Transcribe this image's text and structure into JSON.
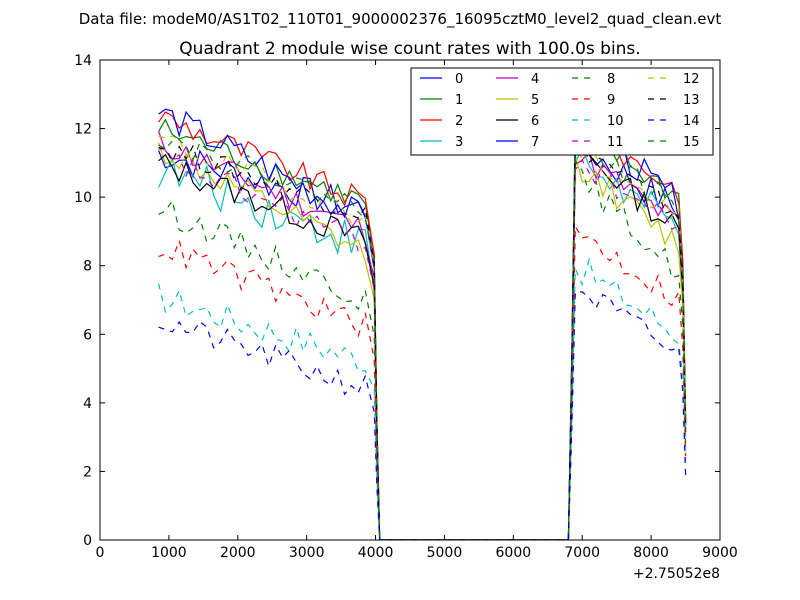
{
  "chart_data": {
    "type": "line",
    "suptitle": "Data file: modeM0/AS1T02_110T01_9000002376_16095cztM0_level2_quad_clean.evt",
    "title": "Quadrant 2 module wise count rates with 100.0s bins.",
    "xlabel": "",
    "ylabel": "",
    "x_offset_label": "+2.75052e8",
    "xlim": [
      0,
      9000
    ],
    "ylim": [
      0,
      14
    ],
    "xticks": [
      0,
      1000,
      2000,
      3000,
      4000,
      5000,
      6000,
      7000,
      8000,
      9000
    ],
    "yticks": [
      0,
      2,
      4,
      6,
      8,
      10,
      12,
      14
    ],
    "xtick_labels": [
      "0",
      "1000",
      "2000",
      "3000",
      "4000",
      "5000",
      "6000",
      "7000",
      "8000",
      "9000"
    ],
    "ytick_labels": [
      "0",
      "2",
      "4",
      "6",
      "8",
      "10",
      "12",
      "14"
    ],
    "grid": false,
    "legend_location": "top-right",
    "legend_columns": 4,
    "bin_width_s": 100,
    "x_segments": [
      {
        "start": 850,
        "end": 3900,
        "step": 100
      },
      {
        "gap_drop_end": 4060,
        "gap_zero_end": 6800,
        "rise_start": 6800
      },
      {
        "start": 6900,
        "end": 8400,
        "step": 100
      },
      {
        "drop_end": 8500
      }
    ],
    "series": [
      {
        "name": "0",
        "color": "#0000ff",
        "style": "solid",
        "start": 11.3,
        "seg1_end": 9.6,
        "seg2_start": 11.6,
        "seg2_end": 9.6,
        "noise": 0.5
      },
      {
        "name": "1",
        "color": "#008000",
        "style": "solid",
        "start": 12.0,
        "seg1_end": 9.8,
        "seg2_start": 12.0,
        "seg2_end": 10.0,
        "noise": 0.4
      },
      {
        "name": "2",
        "color": "#ff0000",
        "style": "solid",
        "start": 12.4,
        "seg1_end": 9.8,
        "seg2_start": 12.2,
        "seg2_end": 10.2,
        "noise": 0.4
      },
      {
        "name": "3",
        "color": "#00bfbf",
        "style": "solid",
        "start": 10.8,
        "seg1_end": 8.6,
        "seg2_start": 11.2,
        "seg2_end": 9.0,
        "noise": 0.6
      },
      {
        "name": "4",
        "color": "#bf00bf",
        "style": "solid",
        "start": 11.6,
        "seg1_end": 9.0,
        "seg2_start": 11.3,
        "seg2_end": 9.2,
        "noise": 0.4
      },
      {
        "name": "5",
        "color": "#bfbf00",
        "style": "solid",
        "start": 11.4,
        "seg1_end": 8.3,
        "seg2_start": 11.0,
        "seg2_end": 8.6,
        "noise": 0.4
      },
      {
        "name": "6",
        "color": "#000000",
        "style": "solid",
        "start": 11.0,
        "seg1_end": 8.7,
        "seg2_start": 11.5,
        "seg2_end": 9.0,
        "noise": 0.4
      },
      {
        "name": "7",
        "color": "#0000ff",
        "style": "solid",
        "start": 12.5,
        "seg1_end": 9.3,
        "seg2_start": 12.4,
        "seg2_end": 9.8,
        "noise": 0.45
      },
      {
        "name": "8",
        "color": "#008000",
        "style": "dashed",
        "start": 9.7,
        "seg1_end": 7.0,
        "seg2_start": 10.7,
        "seg2_end": 7.8,
        "noise": 0.4
      },
      {
        "name": "9",
        "color": "#ff0000",
        "style": "dashed",
        "start": 8.6,
        "seg1_end": 6.2,
        "seg2_start": 9.0,
        "seg2_end": 7.0,
        "noise": 0.4
      },
      {
        "name": "10",
        "color": "#00bfbf",
        "style": "dashed",
        "start": 7.1,
        "seg1_end": 5.2,
        "seg2_start": 8.0,
        "seg2_end": 6.0,
        "noise": 0.45
      },
      {
        "name": "11",
        "color": "#bf00bf",
        "style": "dashed",
        "start": 11.2,
        "seg1_end": 8.6,
        "seg2_start": 11.1,
        "seg2_end": 9.1,
        "noise": 0.4
      },
      {
        "name": "12",
        "color": "#bfbf00",
        "style": "dashed",
        "start": 11.7,
        "seg1_end": 9.4,
        "seg2_start": 11.4,
        "seg2_end": 9.4,
        "noise": 0.35
      },
      {
        "name": "13",
        "color": "#000000",
        "style": "dashed",
        "start": 11.5,
        "seg1_end": 9.5,
        "seg2_start": 11.6,
        "seg2_end": 9.5,
        "noise": 0.35
      },
      {
        "name": "14",
        "color": "#0000ff",
        "style": "dashed",
        "start": 6.4,
        "seg1_end": 4.4,
        "seg2_start": 7.4,
        "seg2_end": 5.4,
        "noise": 0.4
      },
      {
        "name": "15",
        "color": "#008000",
        "style": "dashed",
        "start": 11.8,
        "seg1_end": 9.6,
        "seg2_start": 11.7,
        "seg2_end": 9.7,
        "noise": 0.35
      }
    ]
  }
}
